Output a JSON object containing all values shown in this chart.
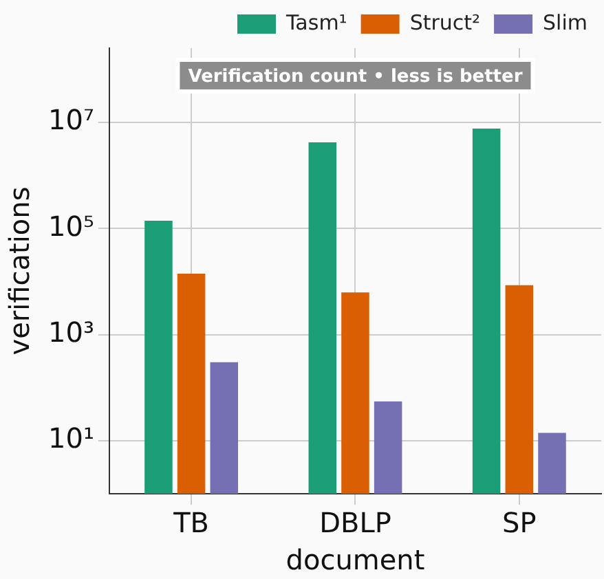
{
  "chart_data": {
    "type": "bar",
    "xlabel": "document",
    "ylabel": "verifications",
    "categories": [
      "TB",
      "DBLP",
      "SP"
    ],
    "series": [
      {
        "name": "Tasm¹",
        "color": "#1b9e77",
        "values": [
          140000,
          4200000,
          7600000
        ]
      },
      {
        "name": "Struct²",
        "color": "#d95f02",
        "values": [
          14000,
          6200,
          8500
        ]
      },
      {
        "name": "Slim",
        "color": "#7570b3",
        "values": [
          300,
          55,
          14
        ]
      }
    ],
    "log": true,
    "ylim": [
      1,
      250000000
    ],
    "yticks": [
      {
        "value": 10,
        "label": "10¹"
      },
      {
        "value": 1000,
        "label": "10³"
      },
      {
        "value": 100000,
        "label": "10⁵"
      },
      {
        "value": 10000000,
        "label": "10⁷"
      }
    ],
    "grid": true,
    "legend": "top right",
    "annotations": [
      "Verification count • less is better"
    ]
  }
}
